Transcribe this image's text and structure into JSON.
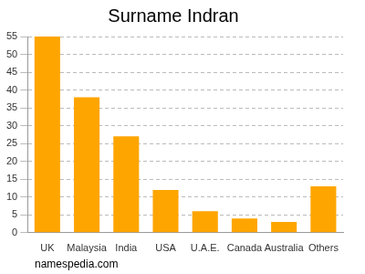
{
  "chart_data": {
    "type": "bar",
    "title": "Surname Indran",
    "categories": [
      "UK",
      "Malaysia",
      "India",
      "USA",
      "U.A.E.",
      "Canada",
      "Australia",
      "Others"
    ],
    "values": [
      55,
      38,
      27,
      12,
      6,
      4,
      3,
      13
    ],
    "color": "#ffa500",
    "ylim": [
      0,
      55
    ],
    "yticks": [
      0,
      5,
      10,
      15,
      20,
      25,
      30,
      35,
      40,
      45,
      50,
      55
    ],
    "grid": true,
    "source": "namespedia.com"
  }
}
